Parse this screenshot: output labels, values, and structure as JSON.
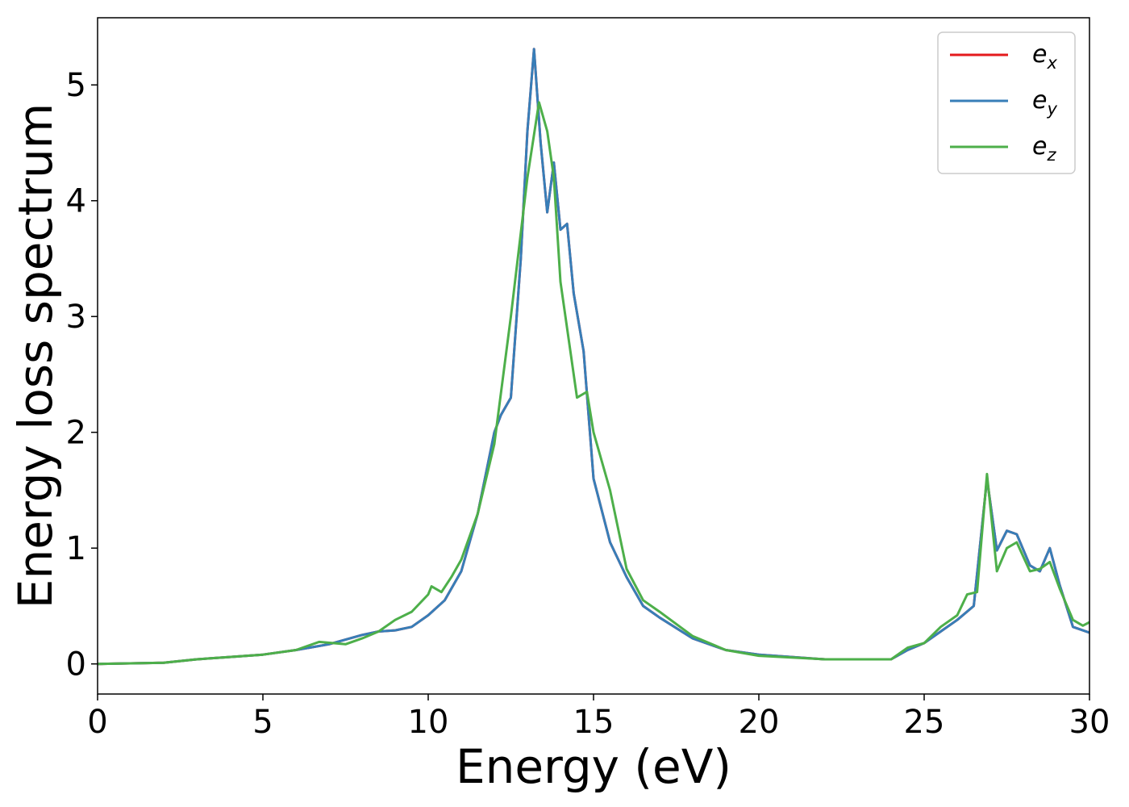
{
  "chart_data": {
    "type": "line",
    "title": "",
    "xlabel": "Energy (eV)",
    "ylabel": "Energy loss spectrum",
    "xlim": [
      0,
      30
    ],
    "ylim": [
      -0.26,
      5.58
    ],
    "xticks": [
      0,
      5,
      10,
      15,
      20,
      25,
      30
    ],
    "yticks": [
      0,
      1,
      2,
      3,
      4,
      5
    ],
    "grid": false,
    "legend_position": "top-right",
    "series": [
      {
        "name": "e_x",
        "color": "#e41a1c",
        "x": [
          0,
          2,
          3,
          4,
          5,
          6,
          7,
          8,
          8.5,
          9,
          9.5,
          10,
          10.5,
          11,
          11.5,
          12,
          12.2,
          12.5,
          12.8,
          13,
          13.2,
          13.4,
          13.6,
          13.8,
          14,
          14.2,
          14.4,
          14.7,
          15,
          15.5,
          16,
          16.5,
          17,
          18,
          19,
          20,
          22,
          24,
          24.5,
          25,
          25.5,
          26,
          26.5,
          26.9,
          27.2,
          27.5,
          27.8,
          28.2,
          28.5,
          28.8,
          29.1,
          29.5,
          30
        ],
        "y": [
          0,
          0.01,
          0.04,
          0.06,
          0.08,
          0.12,
          0.17,
          0.25,
          0.28,
          0.29,
          0.32,
          0.42,
          0.55,
          0.8,
          1.3,
          2.0,
          2.15,
          2.3,
          3.5,
          4.6,
          5.31,
          4.5,
          3.9,
          4.33,
          3.75,
          3.8,
          3.2,
          2.7,
          1.6,
          1.05,
          0.75,
          0.5,
          0.4,
          0.22,
          0.12,
          0.08,
          0.04,
          0.04,
          0.12,
          0.18,
          0.28,
          0.38,
          0.5,
          1.6,
          0.98,
          1.15,
          1.12,
          0.85,
          0.8,
          1.0,
          0.68,
          0.32,
          0.27
        ]
      },
      {
        "name": "e_y",
        "color": "#377eb8",
        "x": [
          0,
          2,
          3,
          4,
          5,
          6,
          7,
          8,
          8.5,
          9,
          9.5,
          10,
          10.5,
          11,
          11.5,
          12,
          12.2,
          12.5,
          12.8,
          13,
          13.2,
          13.4,
          13.6,
          13.8,
          14,
          14.2,
          14.4,
          14.7,
          15,
          15.5,
          16,
          16.5,
          17,
          18,
          19,
          20,
          22,
          24,
          24.5,
          25,
          25.5,
          26,
          26.5,
          26.9,
          27.2,
          27.5,
          27.8,
          28.2,
          28.5,
          28.8,
          29.1,
          29.5,
          30
        ],
        "y": [
          0,
          0.01,
          0.04,
          0.06,
          0.08,
          0.12,
          0.17,
          0.25,
          0.28,
          0.29,
          0.32,
          0.42,
          0.55,
          0.8,
          1.3,
          2.0,
          2.15,
          2.3,
          3.5,
          4.6,
          5.31,
          4.5,
          3.9,
          4.33,
          3.75,
          3.8,
          3.2,
          2.7,
          1.6,
          1.05,
          0.75,
          0.5,
          0.4,
          0.22,
          0.12,
          0.08,
          0.04,
          0.04,
          0.12,
          0.18,
          0.28,
          0.38,
          0.5,
          1.6,
          0.98,
          1.15,
          1.12,
          0.85,
          0.8,
          1.0,
          0.68,
          0.32,
          0.27
        ]
      },
      {
        "name": "e_z",
        "color": "#4daf4a",
        "x": [
          0,
          2,
          3,
          4,
          5,
          6,
          6.7,
          7.5,
          8,
          8.5,
          9,
          9.5,
          10,
          10.1,
          10.4,
          10.7,
          11,
          11.5,
          12,
          12.5,
          13,
          13.35,
          13.6,
          13.8,
          14,
          14.2,
          14.5,
          14.8,
          15,
          15.5,
          16,
          16.5,
          17,
          18,
          19,
          20,
          22,
          24,
          24.5,
          25,
          25.5,
          26,
          26.3,
          26.6,
          26.9,
          27.2,
          27.5,
          27.8,
          28.2,
          28.5,
          28.8,
          29.1,
          29.5,
          29.8,
          30
        ],
        "y": [
          0,
          0.01,
          0.04,
          0.06,
          0.08,
          0.12,
          0.19,
          0.17,
          0.22,
          0.28,
          0.38,
          0.45,
          0.6,
          0.67,
          0.62,
          0.75,
          0.9,
          1.3,
          1.9,
          3.0,
          4.2,
          4.85,
          4.6,
          4.2,
          3.3,
          2.9,
          2.3,
          2.35,
          2.0,
          1.5,
          0.82,
          0.55,
          0.45,
          0.24,
          0.12,
          0.07,
          0.04,
          0.04,
          0.14,
          0.18,
          0.32,
          0.42,
          0.6,
          0.62,
          1.64,
          0.8,
          1.0,
          1.05,
          0.8,
          0.82,
          0.88,
          0.65,
          0.38,
          0.33,
          0.36
        ]
      }
    ]
  }
}
